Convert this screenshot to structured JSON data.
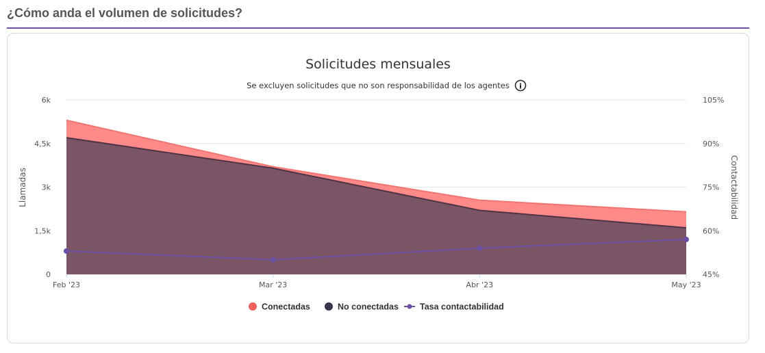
{
  "section": {
    "title": "¿Cómo anda el volumen de solicitudes?"
  },
  "info_icon_glyph": "i",
  "chart_data": {
    "type": "area",
    "title": "Solicitudes mensuales",
    "subtitle": "Se excluyen solicitudes que no son responsabilidad de los agentes",
    "categories": [
      "Feb '23",
      "Mar '23",
      "Abr '23",
      "May '23"
    ],
    "ylabel_left": "Llamadas",
    "ylabel_right": "Contactabilidad",
    "ylim_left": [
      0,
      6000
    ],
    "ylim_right": [
      45,
      105
    ],
    "yticks_left": [
      "6k",
      "4,5k",
      "3k",
      "1,5k",
      "0"
    ],
    "yticks_right": [
      "105%",
      "90%",
      "75%",
      "60%",
      "45%"
    ],
    "grid": true,
    "legend_position": "bottom",
    "series": [
      {
        "name": "Conectadas",
        "type": "area",
        "stacked": true,
        "axis": "left",
        "color": "#ff8a87",
        "values": [
          600,
          50,
          350,
          550
        ]
      },
      {
        "name": "No conectadas",
        "type": "area",
        "stacked": true,
        "axis": "left",
        "color": "#7b5566",
        "legend_color": "#363852",
        "values": [
          4700,
          3650,
          2200,
          1600
        ]
      },
      {
        "name": "Tasa contactabilidad",
        "type": "line",
        "axis": "right",
        "color": "#6a4fa3",
        "values": [
          53,
          50,
          54,
          57
        ]
      }
    ]
  }
}
